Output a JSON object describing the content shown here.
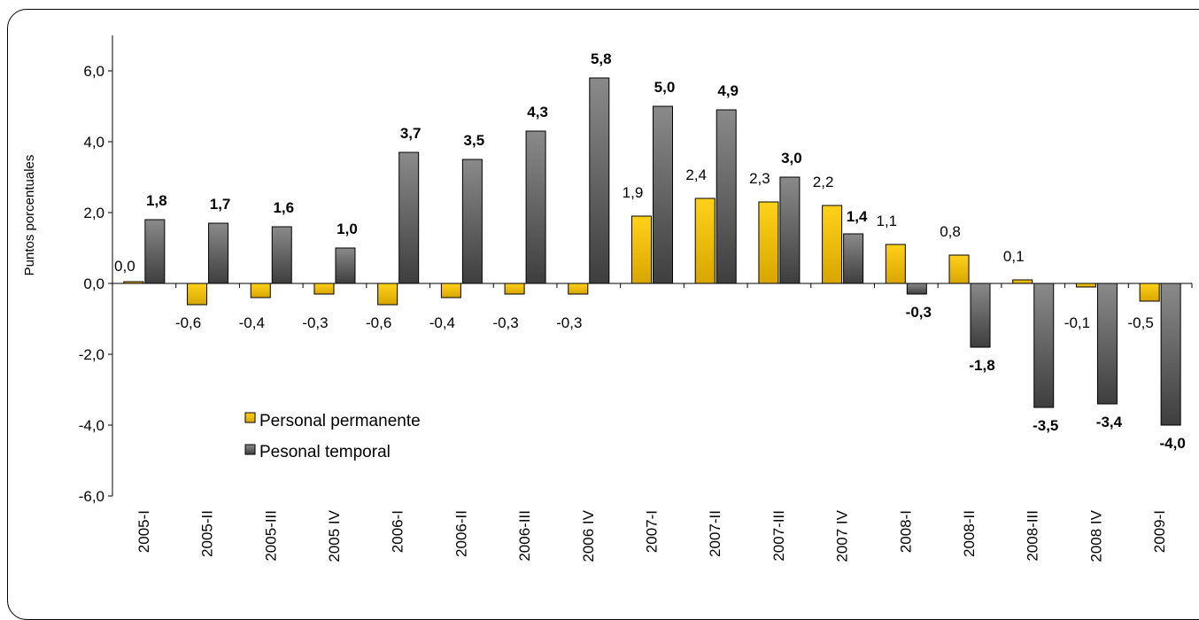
{
  "chart_data": {
    "type": "bar",
    "ylabel": "Puntos porcentuales",
    "ylim": [
      -6,
      6
    ],
    "yticks": [
      "6,0",
      "4,0",
      "2,0",
      "0,0",
      "-2,0",
      "-4,0",
      "-6,0"
    ],
    "ytick_values": [
      6,
      4,
      2,
      0,
      -2,
      -4,
      -6
    ],
    "categories": [
      "2005-I",
      "2005-II",
      "2005-III",
      "2005 IV",
      "2006-I",
      "2006-II",
      "2006-III",
      "2006 IV",
      "2007-I",
      "2007-II",
      "2007-III",
      "2007 IV",
      "2008-I",
      "2008-II",
      "2008-III",
      "2008 IV",
      "2009-I"
    ],
    "series": [
      {
        "name": "Personal permanente",
        "color": "#f2c200",
        "values": [
          0.0,
          -0.6,
          -0.4,
          -0.3,
          -0.6,
          -0.4,
          -0.3,
          -0.3,
          1.9,
          2.4,
          2.3,
          2.2,
          1.1,
          0.8,
          0.1,
          -0.1,
          -0.5
        ],
        "labels": [
          "0,0",
          "-0,6",
          "-0,4",
          "-0,3",
          "-0,6",
          "-0,4",
          "-0,3",
          "-0,3",
          "1,9",
          "2,4",
          "2,3",
          "2,2",
          "1,1",
          "0,8",
          "0,1",
          "-0,1",
          "-0,5"
        ]
      },
      {
        "name": "Pesonal temporal",
        "color": "#6e6e6e",
        "values": [
          1.8,
          1.7,
          1.6,
          1.0,
          3.7,
          3.5,
          4.3,
          5.8,
          5.0,
          4.9,
          3.0,
          1.4,
          -0.3,
          -1.8,
          -3.5,
          -3.4,
          -4.0
        ],
        "labels": [
          "1,8",
          "1,7",
          "1,6",
          "1,0",
          "3,7",
          "3,5",
          "4,3",
          "5,8",
          "5,0",
          "4,9",
          "3,0",
          "1,4",
          "-0,3",
          "-1,8",
          "-3,5",
          "-3,4",
          "-4,0"
        ]
      }
    ],
    "legend": "lower-left",
    "grid": false
  }
}
